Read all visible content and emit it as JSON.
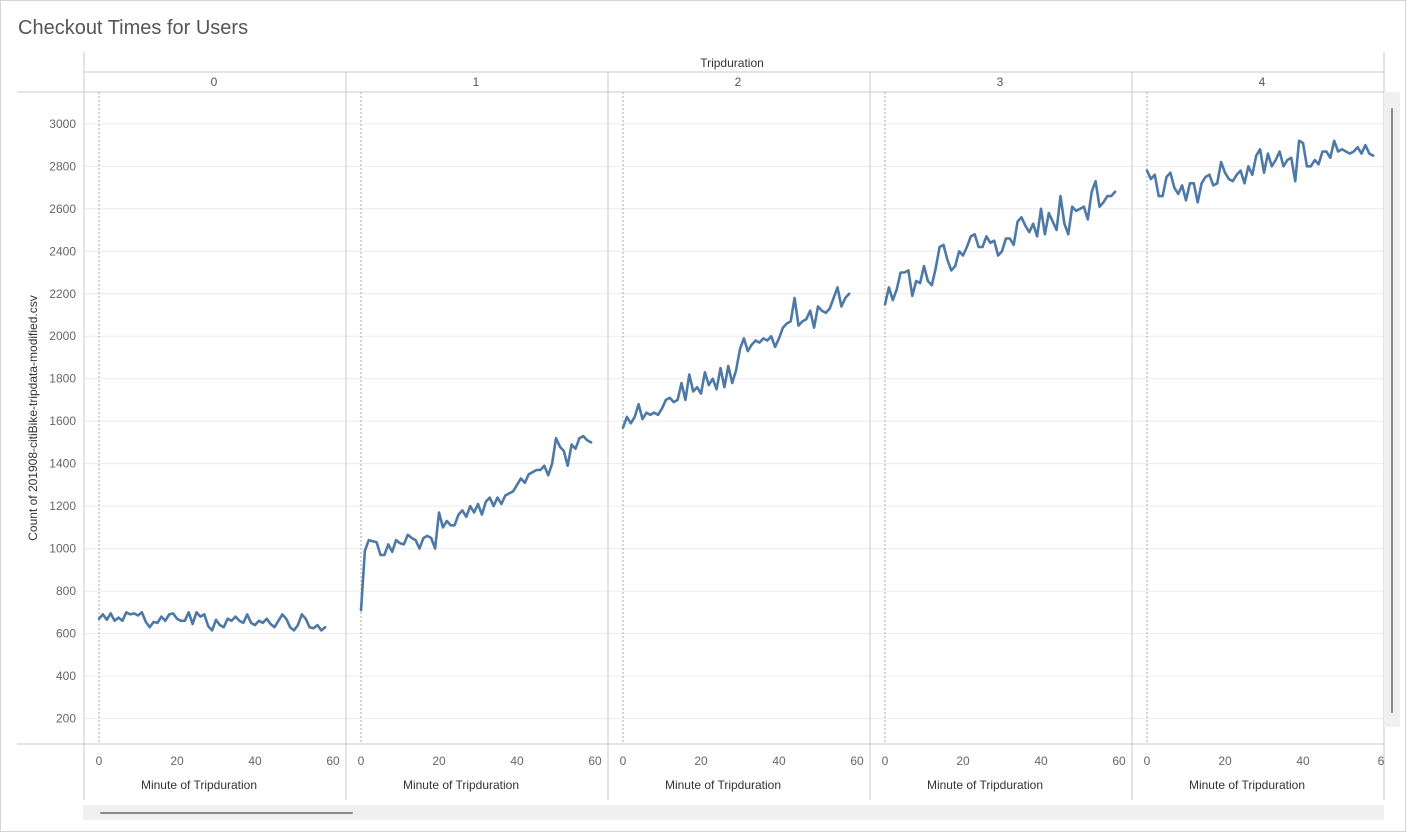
{
  "title": "Checkout Times for Users",
  "column_header": "Tripduration",
  "colors": {
    "line": "#4e79a7",
    "grid": "#ececec",
    "divider": "#c8c8c8",
    "text": "#555555"
  },
  "chart_data": {
    "type": "line",
    "title": "Checkout Times for Users",
    "facet_label": "Tripduration",
    "facets": [
      "0",
      "1",
      "2",
      "3",
      "4"
    ],
    "xlabel": "Minute of Tripduration",
    "ylabel": "Count of 201908-citiBike-tripdata-modified.csv",
    "xlim": [
      0,
      60
    ],
    "ylim": [
      80,
      3150
    ],
    "x_ticks": [
      "0",
      "20",
      "40",
      "60"
    ],
    "last_facet_x_ticks": [
      "0",
      "20",
      "40",
      "6"
    ],
    "y_ticks": [
      200,
      400,
      600,
      800,
      1000,
      1200,
      1400,
      1600,
      1800,
      2000,
      2200,
      2400,
      2600,
      2800,
      3000
    ],
    "series": [
      {
        "facet": "0",
        "values": [
          670,
          690,
          665,
          695,
          660,
          675,
          660,
          700,
          690,
          695,
          685,
          700,
          655,
          630,
          655,
          650,
          680,
          660,
          690,
          695,
          670,
          660,
          660,
          700,
          645,
          700,
          680,
          690,
          635,
          615,
          665,
          640,
          630,
          670,
          660,
          680,
          660,
          650,
          690,
          650,
          640,
          660,
          650,
          670,
          645,
          630,
          660,
          690,
          670,
          630,
          615,
          640,
          690,
          670,
          630,
          625,
          640,
          615,
          630
        ]
      },
      {
        "facet": "1",
        "values": [
          710,
          990,
          1040,
          1035,
          1030,
          970,
          970,
          1020,
          985,
          1040,
          1025,
          1020,
          1065,
          1050,
          1040,
          1000,
          1050,
          1060,
          1050,
          1000,
          1170,
          1100,
          1130,
          1110,
          1110,
          1160,
          1180,
          1150,
          1200,
          1170,
          1210,
          1160,
          1220,
          1240,
          1200,
          1240,
          1210,
          1250,
          1260,
          1270,
          1300,
          1330,
          1310,
          1350,
          1360,
          1370,
          1370,
          1390,
          1345,
          1400,
          1520,
          1480,
          1460,
          1390,
          1490,
          1470,
          1520,
          1530,
          1510,
          1500
        ]
      },
      {
        "facet": "2",
        "values": [
          1570,
          1620,
          1590,
          1620,
          1680,
          1610,
          1640,
          1630,
          1640,
          1630,
          1660,
          1700,
          1710,
          1690,
          1700,
          1780,
          1700,
          1820,
          1740,
          1760,
          1730,
          1830,
          1770,
          1800,
          1750,
          1850,
          1760,
          1860,
          1780,
          1840,
          1940,
          1990,
          1930,
          1960,
          1980,
          1970,
          1990,
          1980,
          2000,
          1950,
          1990,
          2040,
          2060,
          2070,
          2180,
          2050,
          2070,
          2080,
          2120,
          2040,
          2140,
          2120,
          2110,
          2130,
          2180,
          2230,
          2140,
          2180,
          2200
        ]
      },
      {
        "facet": "3",
        "values": [
          2150,
          2230,
          2170,
          2220,
          2300,
          2300,
          2310,
          2190,
          2260,
          2250,
          2330,
          2260,
          2240,
          2320,
          2420,
          2430,
          2360,
          2310,
          2330,
          2400,
          2380,
          2420,
          2470,
          2480,
          2420,
          2420,
          2470,
          2440,
          2450,
          2380,
          2400,
          2460,
          2460,
          2430,
          2540,
          2560,
          2520,
          2490,
          2530,
          2470,
          2600,
          2480,
          2580,
          2540,
          2500,
          2660,
          2530,
          2480,
          2610,
          2590,
          2600,
          2610,
          2550,
          2680,
          2730,
          2610,
          2630,
          2660,
          2660,
          2680
        ]
      },
      {
        "facet": "4",
        "values": [
          2780,
          2740,
          2760,
          2660,
          2660,
          2750,
          2770,
          2700,
          2670,
          2710,
          2640,
          2720,
          2720,
          2630,
          2720,
          2750,
          2760,
          2710,
          2720,
          2820,
          2770,
          2740,
          2730,
          2760,
          2780,
          2720,
          2800,
          2760,
          2850,
          2880,
          2770,
          2860,
          2800,
          2830,
          2870,
          2800,
          2830,
          2840,
          2730,
          2920,
          2910,
          2800,
          2800,
          2830,
          2810,
          2870,
          2870,
          2840,
          2920,
          2870,
          2880,
          2870,
          2860,
          2870,
          2890,
          2860,
          2900,
          2860,
          2850
        ]
      }
    ]
  }
}
